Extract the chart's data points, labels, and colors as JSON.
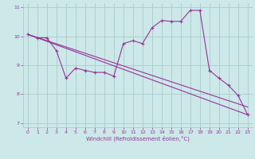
{
  "background_color": "#cce8e8",
  "grid_color": "#aacccc",
  "line_color": "#993399",
  "xlabel": "Windchill (Refroidissement éolien,°C)",
  "xlim": [
    -0.5,
    23.5
  ],
  "ylim": [
    6.85,
    11.15
  ],
  "yticks": [
    7,
    8,
    9,
    10,
    11
  ],
  "xticks": [
    0,
    1,
    2,
    3,
    4,
    5,
    6,
    7,
    8,
    9,
    10,
    11,
    12,
    13,
    14,
    15,
    16,
    17,
    18,
    19,
    20,
    21,
    22,
    23
  ],
  "line1_x": [
    0,
    1,
    2,
    3,
    4,
    5,
    6,
    7,
    8,
    9,
    10,
    11,
    12,
    13,
    14,
    15,
    16,
    17,
    18,
    19,
    20,
    21,
    22,
    23
  ],
  "line1_y": [
    10.07,
    9.95,
    9.95,
    9.5,
    8.55,
    8.9,
    8.82,
    8.75,
    8.75,
    8.62,
    9.75,
    9.85,
    9.75,
    10.3,
    10.55,
    10.52,
    10.52,
    10.9,
    10.9,
    8.82,
    8.55,
    8.3,
    7.95,
    7.28
  ],
  "line2_x": [
    0,
    23
  ],
  "line2_y": [
    10.07,
    7.28
  ],
  "line3_x": [
    0,
    23
  ],
  "line3_y": [
    10.07,
    7.55
  ]
}
